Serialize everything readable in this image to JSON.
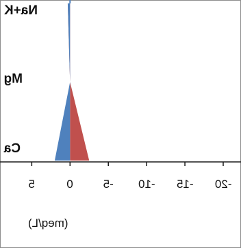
{
  "chart_data": {
    "type": "area",
    "orientation": "horizontal",
    "mirrored_render": true,
    "categories": [
      "Na+K",
      "Mg",
      "Ca"
    ],
    "x_tick_labels": [
      "-20",
      "-15",
      "-10",
      "-5",
      "0",
      "5"
    ],
    "xlabel": "(meq/L)",
    "xlim": [
      -20,
      7
    ],
    "series": [
      {
        "values": [
          0.3,
          0.0,
          -2.5
        ],
        "color": "#c0504d"
      },
      {
        "values": [
          0.3,
          0.0,
          2.0
        ],
        "color": "#4f81bd"
      }
    ],
    "grid": false
  }
}
